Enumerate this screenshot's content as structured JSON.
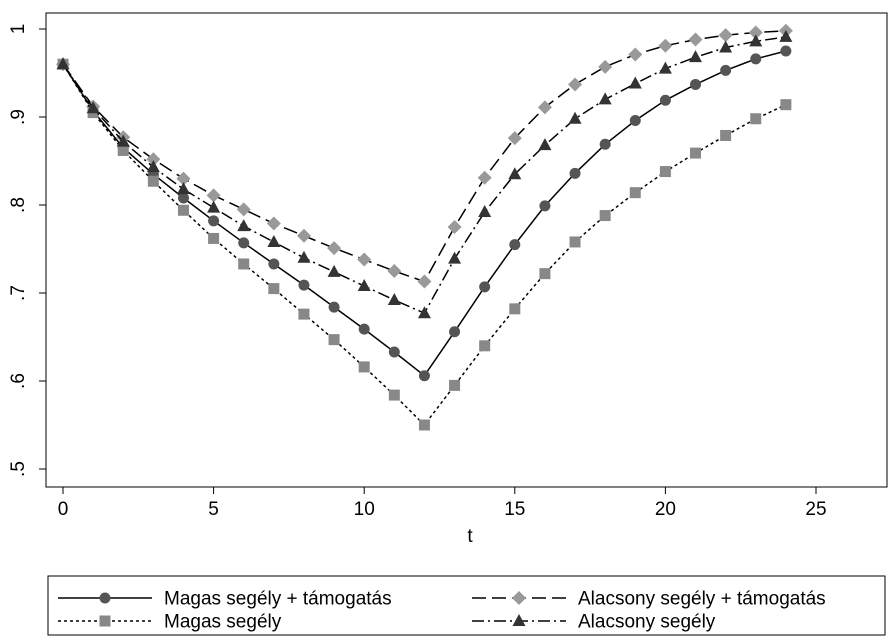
{
  "chart_data": {
    "type": "line",
    "title": "",
    "xlabel": "t",
    "ylabel": "",
    "xlim": [
      0,
      25
    ],
    "ylim": [
      0.5,
      1.0
    ],
    "x_ticks": [
      0,
      5,
      10,
      15,
      20,
      25
    ],
    "x_tick_labels": [
      "0",
      "5",
      "10",
      "15",
      "20",
      "25"
    ],
    "y_ticks": [
      0.5,
      0.6,
      0.7,
      0.8,
      0.9,
      1.0
    ],
    "y_tick_labels": [
      ".5",
      ".6",
      ".7",
      ".8",
      ".9",
      "1"
    ],
    "grid": false,
    "legend_position": "bottom",
    "x": [
      0,
      1,
      2,
      3,
      4,
      5,
      6,
      7,
      8,
      9,
      10,
      11,
      12,
      13,
      14,
      15,
      16,
      17,
      18,
      19,
      20,
      21,
      22,
      23,
      24
    ],
    "series": [
      {
        "name": "Magas segély + támogatás",
        "color": "#555555",
        "marker": "circle",
        "line_style": "solid",
        "values": [
          0.96,
          0.907,
          0.865,
          0.835,
          0.808,
          0.782,
          0.757,
          0.733,
          0.709,
          0.684,
          0.659,
          0.633,
          0.606,
          0.656,
          0.707,
          0.755,
          0.799,
          0.836,
          0.869,
          0.896,
          0.919,
          0.937,
          0.953,
          0.966,
          0.975
        ]
      },
      {
        "name": "Alacsony segély + támogatás",
        "color": "#999999",
        "marker": "diamond",
        "line_style": "dashed",
        "values": [
          0.96,
          0.912,
          0.877,
          0.852,
          0.83,
          0.811,
          0.795,
          0.779,
          0.765,
          0.751,
          0.738,
          0.725,
          0.713,
          0.775,
          0.831,
          0.876,
          0.911,
          0.937,
          0.957,
          0.971,
          0.981,
          0.988,
          0.993,
          0.996,
          0.998
        ]
      },
      {
        "name": "Magas segély",
        "color": "#888888",
        "marker": "square",
        "line_style": "dotted",
        "values": [
          0.96,
          0.905,
          0.862,
          0.827,
          0.794,
          0.762,
          0.733,
          0.705,
          0.676,
          0.647,
          0.616,
          0.584,
          0.55,
          0.595,
          0.64,
          0.682,
          0.722,
          0.758,
          0.788,
          0.814,
          0.838,
          0.859,
          0.879,
          0.898,
          0.914
        ]
      },
      {
        "name": "Alacsony segély",
        "color": "#333333",
        "marker": "triangle",
        "line_style": "dashdot",
        "values": [
          0.96,
          0.91,
          0.872,
          0.843,
          0.818,
          0.797,
          0.776,
          0.758,
          0.74,
          0.724,
          0.708,
          0.692,
          0.677,
          0.739,
          0.792,
          0.835,
          0.868,
          0.898,
          0.92,
          0.938,
          0.955,
          0.968,
          0.979,
          0.986,
          0.991
        ]
      }
    ]
  }
}
